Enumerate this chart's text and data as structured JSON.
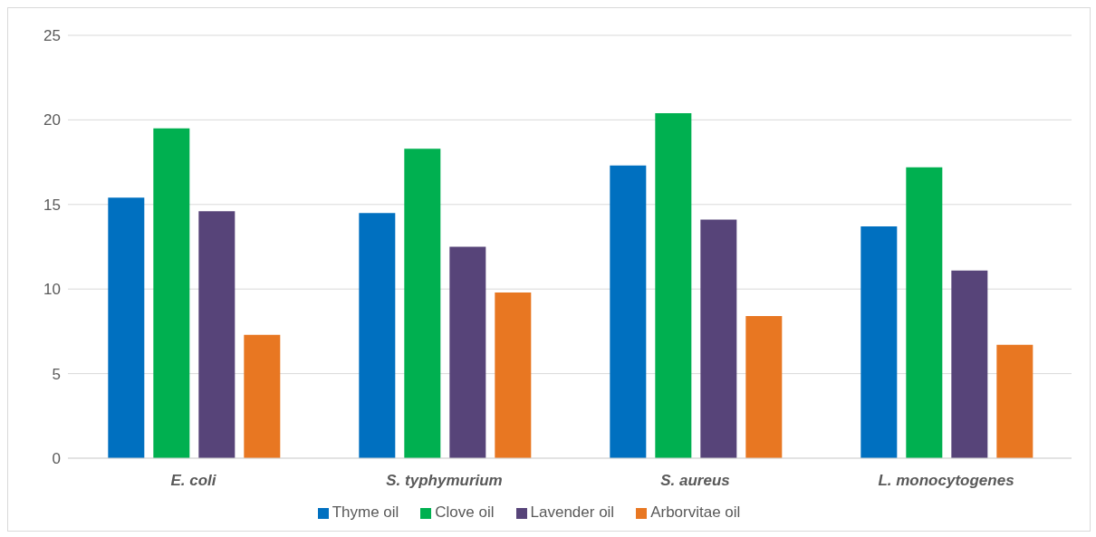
{
  "chart_data": {
    "type": "bar",
    "categories": [
      "E. coli",
      "S. typhymurium",
      "S. aureus",
      "L. monocytogenes"
    ],
    "series": [
      {
        "name": "Thyme oil",
        "color": "#0070c0",
        "values": [
          15.4,
          14.5,
          17.3,
          13.7
        ]
      },
      {
        "name": "Clove oil",
        "color": "#00b050",
        "values": [
          19.5,
          18.3,
          20.4,
          17.2
        ]
      },
      {
        "name": "Lavender oil",
        "color": "#574479",
        "values": [
          14.6,
          12.5,
          14.1,
          11.1
        ]
      },
      {
        "name": "Arborvitae oil",
        "color": "#e87722",
        "values": [
          7.3,
          9.8,
          8.4,
          6.7
        ]
      }
    ],
    "ylim": [
      0,
      25
    ],
    "yticks": [
      0,
      5,
      10,
      15,
      20,
      25
    ],
    "grid": "y",
    "legend": "bottom"
  }
}
